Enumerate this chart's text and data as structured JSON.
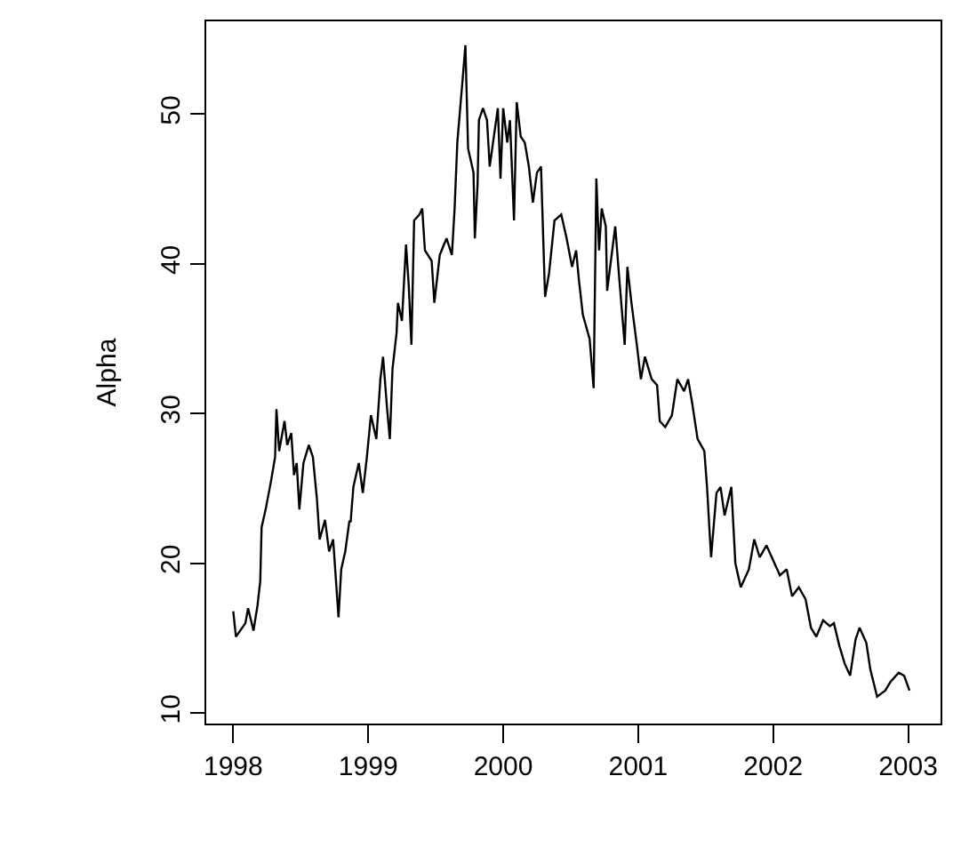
{
  "chart_data": {
    "type": "line",
    "ylabel": "Alpha",
    "xlim": [
      1997.8,
      2003.24
    ],
    "ylim": [
      9.3,
      56.2
    ],
    "xticks": [
      1998,
      1999,
      2000,
      2001,
      2002,
      2003
    ],
    "yticks": [
      10,
      20,
      30,
      40,
      50
    ],
    "marker": "none",
    "line_style": "solid",
    "series": [
      {
        "color": "#000000",
        "x": [
          1998.0,
          1998.02,
          1998.09,
          1998.11,
          1998.15,
          1998.18,
          1998.2,
          1998.21,
          1998.24,
          1998.28,
          1998.31,
          1998.32,
          1998.34,
          1998.38,
          1998.4,
          1998.43,
          1998.45,
          1998.47,
          1998.49,
          1998.52,
          1998.56,
          1998.59,
          1998.62,
          1998.64,
          1998.68,
          1998.71,
          1998.74,
          1998.78,
          1998.8,
          1998.83,
          1998.86,
          1998.87,
          1998.89,
          1998.93,
          1998.96,
          1998.99,
          1999.02,
          1999.04,
          1999.06,
          1999.09,
          1999.11,
          1999.14,
          1999.16,
          1999.18,
          1999.21,
          1999.22,
          1999.25,
          1999.28,
          1999.3,
          1999.32,
          1999.34,
          1999.38,
          1999.4,
          1999.42,
          1999.47,
          1999.49,
          1999.53,
          1999.58,
          1999.62,
          1999.64,
          1999.66,
          1999.7,
          1999.72,
          1999.74,
          1999.78,
          1999.79,
          1999.81,
          1999.82,
          1999.85,
          1999.88,
          1999.9,
          1999.96,
          1999.98,
          2000.0,
          2000.03,
          2000.05,
          2000.08,
          2000.1,
          2000.13,
          2000.16,
          2000.19,
          2000.22,
          2000.25,
          2000.28,
          2000.31,
          2000.34,
          2000.38,
          2000.43,
          2000.47,
          2000.51,
          2000.54,
          2000.56,
          2000.59,
          2000.64,
          2000.67,
          2000.69,
          2000.71,
          2000.73,
          2000.76,
          2000.77,
          2000.83,
          2000.86,
          2000.9,
          2000.92,
          2000.95,
          2000.99,
          2001.02,
          2001.05,
          2001.1,
          2001.14,
          2001.16,
          2001.2,
          2001.25,
          2001.29,
          2001.34,
          2001.37,
          2001.4,
          2001.44,
          2001.49,
          2001.51,
          2001.54,
          2001.58,
          2001.61,
          2001.64,
          2001.69,
          2001.72,
          2001.76,
          2001.82,
          2001.86,
          2001.9,
          2001.95,
          2002.01,
          2002.05,
          2002.1,
          2002.14,
          2002.19,
          2002.24,
          2002.28,
          2002.32,
          2002.37,
          2002.42,
          2002.45,
          2002.49,
          2002.53,
          2002.57,
          2002.61,
          2002.64,
          2002.69,
          2002.72,
          2002.77,
          2002.83,
          2002.87,
          2002.93,
          2002.97,
          2003.01
        ],
        "values": [
          16.8,
          15.1,
          16.0,
          17.0,
          15.5,
          17.2,
          18.8,
          22.4,
          23.6,
          25.5,
          27.1,
          30.3,
          27.5,
          29.5,
          27.9,
          28.7,
          25.9,
          26.7,
          23.6,
          26.7,
          27.9,
          27.1,
          24.3,
          21.6,
          22.9,
          20.8,
          21.6,
          16.4,
          19.6,
          20.8,
          22.8,
          22.8,
          25.1,
          26.7,
          24.7,
          27.1,
          29.9,
          29.1,
          28.3,
          32.3,
          33.8,
          30.3,
          28.3,
          33.0,
          35.4,
          37.4,
          36.2,
          41.3,
          38.6,
          34.6,
          42.9,
          43.3,
          43.7,
          40.9,
          40.2,
          37.4,
          40.6,
          41.7,
          40.6,
          43.7,
          48.1,
          52.4,
          54.6,
          47.7,
          46.1,
          41.7,
          45.3,
          49.6,
          50.4,
          49.6,
          46.5,
          50.4,
          45.7,
          50.4,
          48.1,
          49.6,
          42.9,
          50.8,
          48.5,
          48.1,
          46.5,
          44.1,
          46.1,
          46.5,
          37.8,
          39.4,
          42.9,
          43.3,
          41.7,
          39.8,
          40.9,
          39.0,
          36.6,
          35.0,
          31.7,
          45.7,
          40.9,
          43.7,
          42.5,
          38.2,
          42.5,
          39.0,
          34.6,
          39.8,
          37.4,
          34.6,
          32.3,
          33.8,
          32.3,
          31.9,
          29.5,
          29.1,
          29.9,
          32.3,
          31.5,
          32.3,
          30.7,
          28.3,
          27.5,
          25.1,
          20.4,
          24.7,
          25.1,
          23.2,
          25.1,
          20.0,
          18.4,
          19.6,
          21.6,
          20.4,
          21.2,
          20.0,
          19.2,
          19.6,
          17.8,
          18.4,
          17.6,
          15.7,
          15.1,
          16.2,
          15.8,
          16.0,
          14.5,
          13.3,
          12.5,
          14.9,
          15.7,
          14.7,
          12.9,
          11.1,
          11.5,
          12.1,
          12.7,
          12.5,
          11.5
        ]
      }
    ]
  }
}
